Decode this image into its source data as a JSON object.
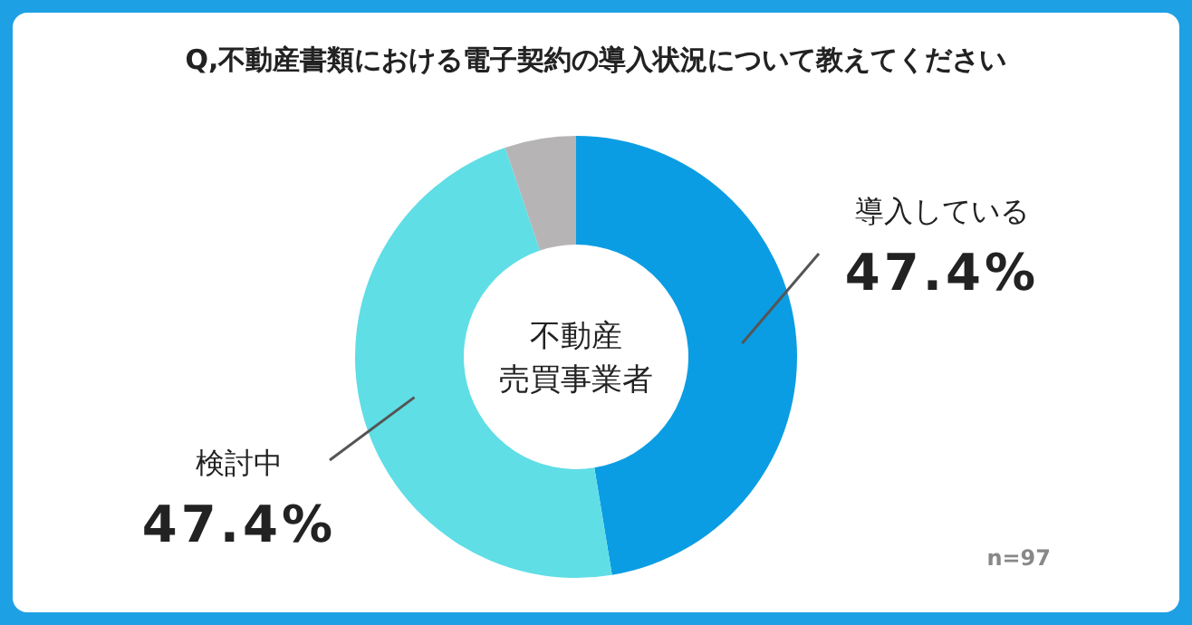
{
  "chart_data": {
    "type": "donut",
    "title": "Q,不動産書類における電子契約の導入状況について教えてください",
    "categories": [
      "導入している",
      "検討中",
      null
    ],
    "values": [
      47.4,
      47.4,
      5.2
    ],
    "colors": [
      "#0b9de3",
      "#5fdee6",
      "#b6b4b4"
    ],
    "value_labels": [
      "47.4%",
      "47.4%",
      null
    ],
    "annotations": [
      "不動産",
      "売買事業者",
      "n=97"
    ]
  }
}
